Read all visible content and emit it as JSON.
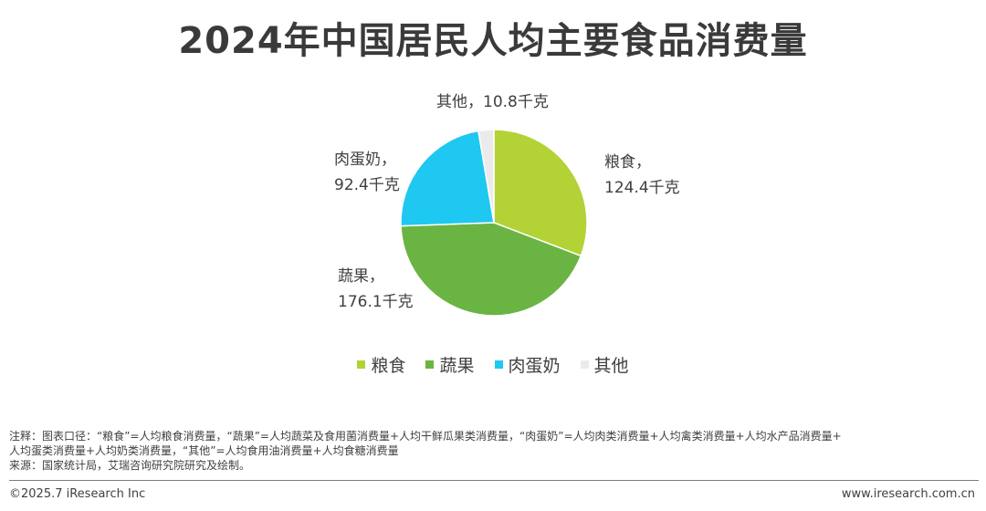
{
  "chart_data": {
    "type": "pie",
    "title": "2024年中国居民人均主要食品消费量",
    "unit": "千克",
    "slices": [
      {
        "name": "粮食",
        "value": 124.4,
        "label_line1": "粮食，",
        "label_line2": "124.4千克",
        "color": "#b2d235"
      },
      {
        "name": "蔬果",
        "value": 176.1,
        "label_line1": "蔬果，",
        "label_line2": "176.1千克",
        "color": "#6ab443"
      },
      {
        "name": "肉蛋奶",
        "value": 92.4,
        "label_line1": "肉蛋奶，",
        "label_line2": "92.4千克",
        "color": "#1ec8f0"
      },
      {
        "name": "其他",
        "value": 10.8,
        "label_line1": "其他，10.8千克",
        "label_line2": "",
        "color": "#ebebeb"
      }
    ],
    "legend_position": "bottom"
  },
  "notes": {
    "line1": "注释：图表口径：“粮食”=人均粮食消费量，“蔬果”=人均蔬菜及食用菌消费量+人均干鲜瓜果类消费量，“肉蛋奶”=人均肉类消费量+人均禽类消费量+人均水产品消费量+",
    "line2": "人均蛋类消费量+人均奶类消费量，“其他”=人均食用油消费量+人均食糖消费量",
    "line3": "来源：国家统计局，艾瑞咨询研究院研究及绘制。"
  },
  "footer": {
    "copyright": "©2025.7 iResearch Inc",
    "website": "www.iresearch.com.cn"
  }
}
